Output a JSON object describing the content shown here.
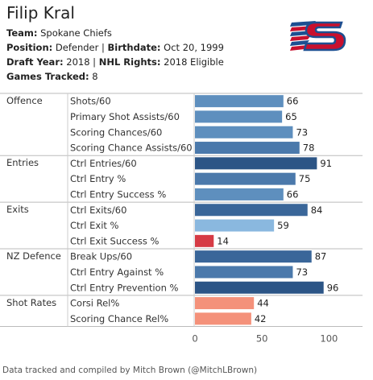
{
  "player": {
    "name": "Filip Kral",
    "team_label": "Team:",
    "team": "Spokane Chiefs",
    "position_label": "Position:",
    "position": "Defender",
    "birthdate_label": "Birthdate:",
    "birthdate": "Oct 20, 1999",
    "draft_label": "Draft Year:",
    "draft_year": "2018",
    "rights_label": "NHL Rights:",
    "rights": "2018 Eligible",
    "games_label": "Games Tracked:",
    "games": "8"
  },
  "logo": {
    "icon": "spokane-chiefs-logo-icon",
    "colors": [
      "#c8102e",
      "#1d4f91"
    ]
  },
  "chart_data": {
    "type": "bar",
    "orientation": "horizontal",
    "xlim": [
      0,
      110
    ],
    "xticks": [
      0,
      50,
      100
    ],
    "grid": false,
    "groups": [
      {
        "name": "Offence",
        "items": [
          {
            "label": "Shots/60",
            "value": 66,
            "color": "#5e8fbe"
          },
          {
            "label": "Primary Shot Assists/60",
            "value": 65,
            "color": "#5e8fbe"
          },
          {
            "label": "Scoring Chances/60",
            "value": 73,
            "color": "#5e8fbe"
          },
          {
            "label": "Scoring Chance Assists/60",
            "value": 78,
            "color": "#4b79ab"
          }
        ]
      },
      {
        "name": "Entries",
        "items": [
          {
            "label": "Ctrl Entries/60",
            "value": 91,
            "color": "#2c5586"
          },
          {
            "label": "Ctrl Entry %",
            "value": 75,
            "color": "#4b79ab"
          },
          {
            "label": "Ctrl Entry Success %",
            "value": 66,
            "color": "#5e8fbe"
          }
        ]
      },
      {
        "name": "Exits",
        "items": [
          {
            "label": "Ctrl Exits/60",
            "value": 84,
            "color": "#3a6699"
          },
          {
            "label": "Ctrl Exit %",
            "value": 59,
            "color": "#8ab8df"
          },
          {
            "label": "Ctrl Exit Success %",
            "value": 14,
            "color": "#d63b45"
          }
        ]
      },
      {
        "name": "NZ Defence",
        "items": [
          {
            "label": "Break Ups/60",
            "value": 87,
            "color": "#3a6699"
          },
          {
            "label": "Ctrl Entry Against %",
            "value": 73,
            "color": "#4b79ab"
          },
          {
            "label": "Ctrl Entry Prevention %",
            "value": 96,
            "color": "#2c5586"
          }
        ]
      },
      {
        "name": "Shot Rates",
        "items": [
          {
            "label": "Corsi Rel%",
            "value": 44,
            "color": "#f4917a"
          },
          {
            "label": "Scoring Chance Rel%",
            "value": 42,
            "color": "#f4917a"
          }
        ]
      }
    ]
  },
  "footer": "Data tracked and compiled by Mitch Brown (@MitchLBrown)"
}
